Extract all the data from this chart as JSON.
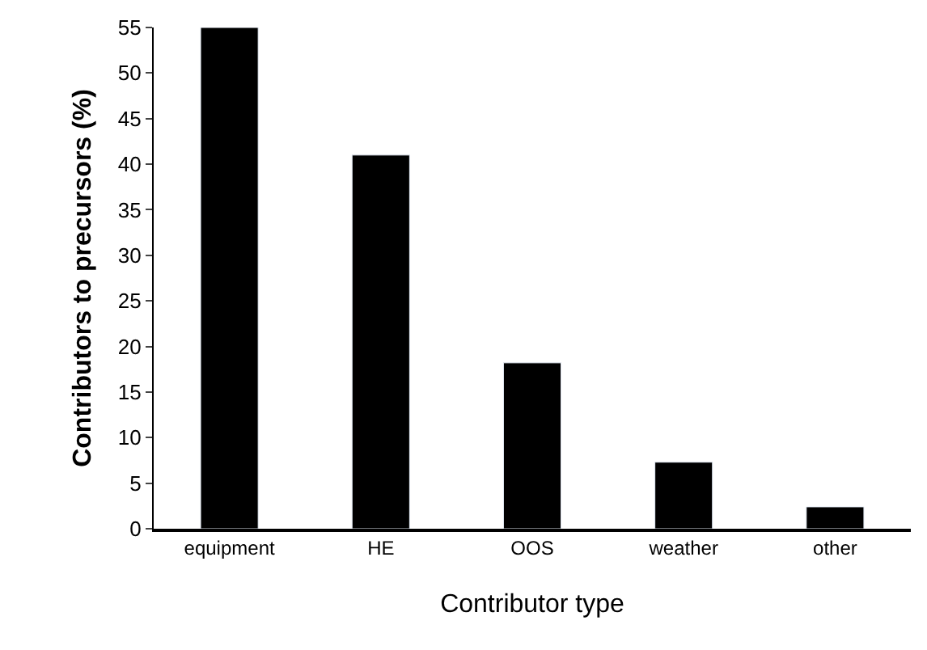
{
  "chart_data": {
    "type": "bar",
    "xlabel": "Contributor type",
    "ylabel": "Contributors to precursors (%)",
    "categories": [
      "equipment",
      "HE",
      "OOS",
      "weather",
      "other"
    ],
    "values": [
      55,
      41,
      18.2,
      7.3,
      2.4
    ],
    "color": "#000000",
    "ylim": [
      0,
      55
    ],
    "yticks": [
      0,
      5,
      10,
      15,
      20,
      25,
      30,
      35,
      40,
      45,
      50,
      55
    ]
  }
}
